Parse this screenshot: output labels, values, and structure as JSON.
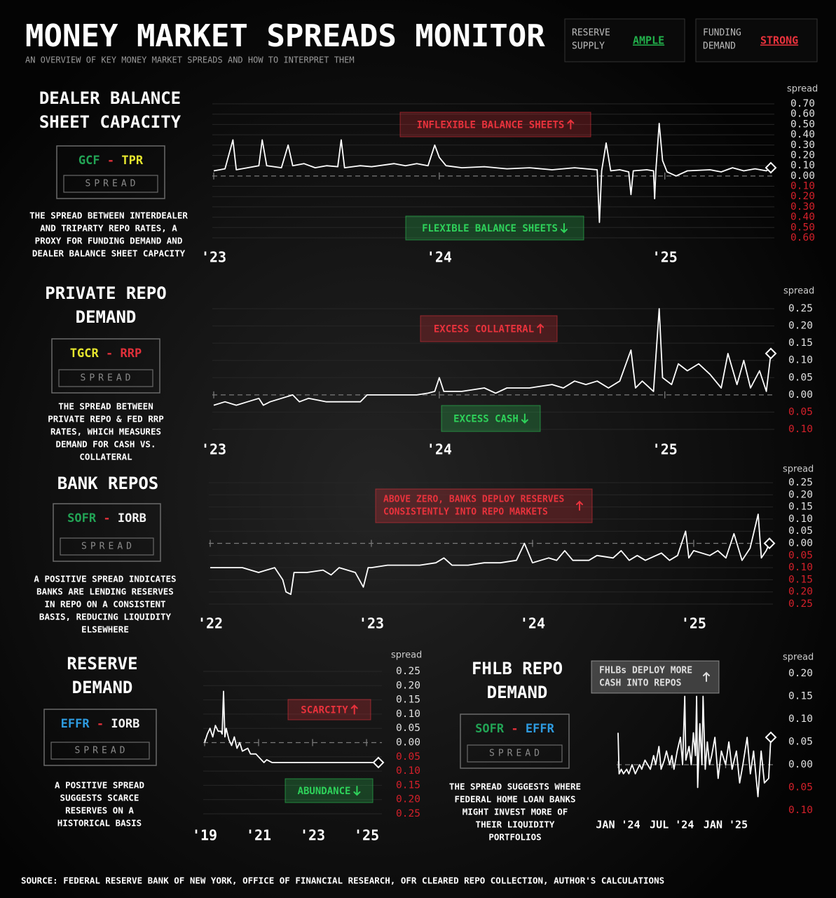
{
  "header": {
    "title": "MONEY MARKET SPREADS MONITOR",
    "subtitle": "AN OVERVIEW OF KEY MONEY MARKET SPREADS AND HOW TO INTERPRET THEM",
    "badges": [
      {
        "label": [
          "RESERVE",
          "SUPPLY"
        ],
        "value": "AMPLE",
        "color": "#22b04b"
      },
      {
        "label": [
          "FUNDING",
          "DEMAND"
        ],
        "value": "STRONG",
        "color": "#e8323c"
      }
    ]
  },
  "chart_data": [
    {
      "type": "line",
      "title": [
        "DEALER BALANCE",
        "SHEET CAPACITY"
      ],
      "formula": [
        {
          "text": "GCF",
          "color": "#22a455"
        },
        {
          "text": "-",
          "color": "#e0303a"
        },
        {
          "text": "TPR",
          "color": "#e6e62e"
        }
      ],
      "formula_label": "SPREAD",
      "description": [
        "THE SPREAD BETWEEN INTERDEALER",
        "AND TRIPARTY REPO RATES, A",
        "PROXY FOR FUNDING DEMAND AND",
        "DEALER BALANCE SHEET CAPACITY"
      ],
      "annotations": [
        {
          "lines": [
            "INFLEXIBLE BALANCE SHEETS"
          ],
          "arrow": "up",
          "color": "#e8323c"
        },
        {
          "lines": [
            "FLEXIBLE BALANCE SHEETS"
          ],
          "arrow": "down",
          "color": "#2ed15a"
        }
      ],
      "ylabel": "spread",
      "color": "#ffffff",
      "grid": true,
      "xlim": [
        2023,
        2025.47
      ],
      "xticks": [
        {
          "value": 2023,
          "label": "'23"
        },
        {
          "value": 2024,
          "label": "'24"
        },
        {
          "value": 2025,
          "label": "'25"
        }
      ],
      "ylim": [
        -0.6,
        0.7
      ],
      "yticks": [
        {
          "value": 0.7,
          "label": "0.70"
        },
        {
          "value": 0.6,
          "label": "0.60"
        },
        {
          "value": 0.5,
          "label": "0.50"
        },
        {
          "value": 0.4,
          "label": "0.40"
        },
        {
          "value": 0.3,
          "label": "0.30"
        },
        {
          "value": 0.2,
          "label": "0.20"
        },
        {
          "value": 0.1,
          "label": "0.10"
        },
        {
          "value": 0,
          "label": "0.00"
        },
        {
          "value": -0.1,
          "label": "0.10"
        },
        {
          "value": -0.2,
          "label": "0.20"
        },
        {
          "value": -0.3,
          "label": "0.30"
        },
        {
          "value": -0.4,
          "label": "0.40"
        },
        {
          "value": -0.5,
          "label": "0.50"
        },
        {
          "value": -0.6,
          "label": "0.60"
        }
      ],
      "x": [
        2023.0,
        2023.05,
        2023.085,
        2023.1,
        2023.15,
        2023.2,
        2023.215,
        2023.235,
        2023.3,
        2023.33,
        2023.35,
        2023.4,
        2023.45,
        2023.5,
        2023.55,
        2023.565,
        2023.58,
        2023.65,
        2023.7,
        2023.8,
        2023.85,
        2023.9,
        2023.95,
        2023.98,
        2024.0,
        2024.03,
        2024.1,
        2024.2,
        2024.3,
        2024.4,
        2024.5,
        2024.6,
        2024.7,
        2024.71,
        2024.72,
        2024.74,
        2024.76,
        2024.8,
        2024.84,
        2024.85,
        2024.86,
        2024.92,
        2024.95,
        2024.955,
        2024.96,
        2024.975,
        2024.99,
        2025.01,
        2025.05,
        2025.1,
        2025.2,
        2025.25,
        2025.3,
        2025.35,
        2025.4,
        2025.45,
        2025.47
      ],
      "values": [
        0.05,
        0.07,
        0.35,
        0.06,
        0.08,
        0.1,
        0.35,
        0.1,
        0.08,
        0.3,
        0.1,
        0.12,
        0.08,
        0.1,
        0.09,
        0.35,
        0.08,
        0.1,
        0.09,
        0.12,
        0.1,
        0.12,
        0.1,
        0.3,
        0.18,
        0.1,
        0.08,
        0.09,
        0.07,
        0.08,
        0.06,
        0.08,
        0.06,
        -0.45,
        0.05,
        0.32,
        0.05,
        0.06,
        0.04,
        -0.18,
        0.05,
        0.06,
        0.05,
        -0.22,
        0.05,
        0.51,
        0.15,
        0.04,
        0.0,
        0.05,
        0.06,
        0.04,
        0.08,
        0.05,
        0.07,
        0.05,
        0.08
      ]
    },
    {
      "type": "line",
      "title": [
        "PRIVATE REPO",
        "DEMAND"
      ],
      "formula": [
        {
          "text": "TGCR",
          "color": "#e6e62e"
        },
        {
          "text": "-",
          "color": "#e0303a"
        },
        {
          "text": "RRP",
          "color": "#e0303a"
        }
      ],
      "formula_label": "SPREAD",
      "description": [
        "THE SPREAD BETWEEN",
        "PRIVATE REPO & FED RRP",
        "RATES, WHICH MEASURES",
        "DEMAND FOR CASH VS.",
        "COLLATERAL"
      ],
      "annotations": [
        {
          "lines": [
            "EXCESS COLLATERAL"
          ],
          "arrow": "up",
          "color": "#e8323c"
        },
        {
          "lines": [
            "EXCESS CASH"
          ],
          "arrow": "down",
          "color": "#2ed15a"
        }
      ],
      "ylabel": "spread",
      "color": "#ffffff",
      "grid": true,
      "xlim": [
        2023,
        2025.47
      ],
      "xticks": [
        {
          "value": 2023,
          "label": "'23"
        },
        {
          "value": 2024,
          "label": "'24"
        },
        {
          "value": 2025,
          "label": "'25"
        }
      ],
      "ylim": [
        -0.1,
        0.25
      ],
      "yticks": [
        {
          "value": 0.25,
          "label": "0.25"
        },
        {
          "value": 0.2,
          "label": "0.20"
        },
        {
          "value": 0.15,
          "label": "0.15"
        },
        {
          "value": 0.1,
          "label": "0.10"
        },
        {
          "value": 0.05,
          "label": "0.05"
        },
        {
          "value": 0,
          "label": "0.00"
        },
        {
          "value": -0.05,
          "label": "0.05"
        },
        {
          "value": -0.1,
          "label": "0.10"
        }
      ],
      "x": [
        2023.0,
        2023.05,
        2023.1,
        2023.15,
        2023.2,
        2023.22,
        2023.25,
        2023.3,
        2023.35,
        2023.38,
        2023.42,
        2023.5,
        2023.55,
        2023.6,
        2023.65,
        2023.68,
        2023.75,
        2023.85,
        2023.9,
        2023.95,
        2023.98,
        2024.0,
        2024.02,
        2024.1,
        2024.2,
        2024.25,
        2024.3,
        2024.4,
        2024.5,
        2024.55,
        2024.6,
        2024.65,
        2024.7,
        2024.75,
        2024.8,
        2024.85,
        2024.87,
        2024.9,
        2024.95,
        2024.975,
        2024.99,
        2025.03,
        2025.06,
        2025.1,
        2025.15,
        2025.2,
        2025.25,
        2025.28,
        2025.32,
        2025.35,
        2025.38,
        2025.42,
        2025.45,
        2025.47
      ],
      "values": [
        -0.03,
        -0.02,
        -0.03,
        -0.02,
        -0.01,
        -0.03,
        -0.02,
        -0.01,
        0.0,
        -0.02,
        -0.01,
        -0.02,
        -0.02,
        -0.02,
        -0.02,
        0.0,
        0.0,
        0.0,
        0.0,
        0.005,
        0.01,
        0.05,
        0.01,
        0.01,
        0.02,
        0.005,
        0.02,
        0.02,
        0.03,
        0.02,
        0.04,
        0.03,
        0.04,
        0.02,
        0.04,
        0.13,
        0.02,
        0.04,
        0.01,
        0.25,
        0.05,
        0.03,
        0.09,
        0.07,
        0.09,
        0.06,
        0.02,
        0.12,
        0.03,
        0.1,
        0.02,
        0.07,
        0.01,
        0.12
      ]
    },
    {
      "type": "line",
      "title": [
        "BANK REPOS"
      ],
      "formula": [
        {
          "text": "SOFR",
          "color": "#22a455"
        },
        {
          "text": "-",
          "color": "#e0303a"
        },
        {
          "text": "IORB",
          "color": "#f0f0f0"
        }
      ],
      "formula_label": "SPREAD",
      "description": [
        "A POSITIVE SPREAD INDICATES",
        "BANKS ARE LENDING RESERVES",
        "IN REPO ON A CONSISTENT",
        "BASIS, REDUCING LIQUIDITY",
        "ELSEWHERE"
      ],
      "annotations": [
        {
          "lines": [
            "ABOVE ZERO, BANKS DEPLOY RESERVES",
            "CONSISTENTLY INTO REPO MARKETS"
          ],
          "arrow": "up",
          "color": "#e8323c"
        }
      ],
      "ylabel": "spread",
      "color": "#ffffff",
      "grid": true,
      "xlim": [
        2022,
        2025.47
      ],
      "xticks": [
        {
          "value": 2022,
          "label": "'22"
        },
        {
          "value": 2023,
          "label": "'23"
        },
        {
          "value": 2024,
          "label": "'24"
        },
        {
          "value": 2025,
          "label": "'25"
        }
      ],
      "ylim": [
        -0.25,
        0.25
      ],
      "yticks": [
        {
          "value": 0.25,
          "label": "0.25"
        },
        {
          "value": 0.2,
          "label": "0.20"
        },
        {
          "value": 0.15,
          "label": "0.15"
        },
        {
          "value": 0.1,
          "label": "0.10"
        },
        {
          "value": 0.05,
          "label": "0.05"
        },
        {
          "value": 0,
          "label": "0.00"
        },
        {
          "value": -0.05,
          "label": "0.05"
        },
        {
          "value": -0.1,
          "label": "0.10"
        },
        {
          "value": -0.15,
          "label": "0.15"
        },
        {
          "value": -0.2,
          "label": "0.20"
        },
        {
          "value": -0.25,
          "label": "0.25"
        }
      ],
      "x": [
        2022.0,
        2022.1,
        2022.2,
        2022.3,
        2022.4,
        2022.45,
        2022.47,
        2022.5,
        2022.52,
        2022.6,
        2022.7,
        2022.75,
        2022.8,
        2022.9,
        2022.95,
        2022.98,
        2023.0,
        2023.1,
        2023.2,
        2023.3,
        2023.4,
        2023.45,
        2023.5,
        2023.6,
        2023.7,
        2023.8,
        2023.9,
        2023.95,
        2024.0,
        2024.1,
        2024.15,
        2024.2,
        2024.25,
        2024.35,
        2024.4,
        2024.5,
        2024.55,
        2024.6,
        2024.65,
        2024.7,
        2024.8,
        2024.85,
        2024.9,
        2024.95,
        2024.97,
        2025.0,
        2025.1,
        2025.15,
        2025.2,
        2025.25,
        2025.3,
        2025.35,
        2025.4,
        2025.42,
        2025.45,
        2025.47
      ],
      "values": [
        -0.1,
        -0.1,
        -0.1,
        -0.12,
        -0.1,
        -0.15,
        -0.2,
        -0.21,
        -0.12,
        -0.12,
        -0.11,
        -0.13,
        -0.1,
        -0.12,
        -0.18,
        -0.1,
        -0.1,
        -0.09,
        -0.09,
        -0.09,
        -0.08,
        -0.06,
        -0.09,
        -0.09,
        -0.08,
        -0.08,
        -0.07,
        0.0,
        -0.08,
        -0.06,
        -0.07,
        -0.03,
        -0.07,
        -0.07,
        -0.05,
        -0.06,
        -0.03,
        -0.07,
        -0.05,
        -0.07,
        -0.04,
        -0.07,
        -0.05,
        0.05,
        -0.06,
        -0.03,
        -0.05,
        -0.03,
        -0.06,
        0.04,
        -0.07,
        -0.02,
        0.12,
        -0.06,
        -0.03,
        0.0
      ]
    },
    {
      "type": "line",
      "title": [
        "RESERVE",
        "DEMAND"
      ],
      "formula": [
        {
          "text": "EFFR",
          "color": "#2e9be0"
        },
        {
          "text": "-",
          "color": "#e0303a"
        },
        {
          "text": "IORB",
          "color": "#f0f0f0"
        }
      ],
      "formula_label": "SPREAD",
      "description": [
        "A POSITIVE SPREAD",
        "SUGGESTS SCARCE",
        "RESERVES ON A",
        "HISTORICAL BASIS"
      ],
      "annotations": [
        {
          "lines": [
            "SCARCITY"
          ],
          "arrow": "up",
          "color": "#e8323c"
        },
        {
          "lines": [
            "ABUNDANCE"
          ],
          "arrow": "down",
          "color": "#2ed15a"
        }
      ],
      "ylabel": "spread",
      "color": "#ffffff",
      "grid": true,
      "xlim": [
        2019,
        2025.44
      ],
      "xticks": [
        {
          "value": 2019,
          "label": "'19"
        },
        {
          "value": 2021,
          "label": "'21"
        },
        {
          "value": 2023,
          "label": "'23"
        },
        {
          "value": 2025,
          "label": "'25"
        }
      ],
      "ylim": [
        -0.25,
        0.25
      ],
      "yticks": [
        {
          "value": 0.25,
          "label": "0.25"
        },
        {
          "value": 0.2,
          "label": "0.20"
        },
        {
          "value": 0.15,
          "label": "0.15"
        },
        {
          "value": 0.1,
          "label": "0.10"
        },
        {
          "value": 0.05,
          "label": "0.05"
        },
        {
          "value": 0,
          "label": "0.00"
        },
        {
          "value": -0.05,
          "label": "0.05"
        },
        {
          "value": -0.1,
          "label": "0.10"
        },
        {
          "value": -0.15,
          "label": "0.15"
        },
        {
          "value": -0.2,
          "label": "0.20"
        },
        {
          "value": -0.25,
          "label": "0.25"
        }
      ],
      "x": [
        2019.0,
        2019.1,
        2019.2,
        2019.3,
        2019.4,
        2019.5,
        2019.6,
        2019.65,
        2019.7,
        2019.75,
        2019.8,
        2019.9,
        2020.0,
        2020.1,
        2020.2,
        2020.3,
        2020.4,
        2020.6,
        2020.7,
        2020.9,
        2021.0,
        2021.2,
        2021.3,
        2021.5,
        2021.6,
        2022.0,
        2022.5,
        2023.0,
        2023.5,
        2024.0,
        2024.5,
        2025.0,
        2025.44
      ],
      "values": [
        0.0,
        0.03,
        0.05,
        0.02,
        0.06,
        0.04,
        0.04,
        0.03,
        0.18,
        0.02,
        0.05,
        0.01,
        -0.01,
        0.02,
        -0.02,
        0.0,
        -0.03,
        -0.02,
        -0.04,
        -0.04,
        -0.05,
        -0.07,
        -0.06,
        -0.07,
        -0.07,
        -0.07,
        -0.07,
        -0.07,
        -0.07,
        -0.07,
        -0.07,
        -0.07,
        -0.07
      ]
    },
    {
      "type": "line",
      "title": [
        "FHLB REPO",
        "DEMAND"
      ],
      "formula": [
        {
          "text": "SOFR",
          "color": "#22a455"
        },
        {
          "text": "-",
          "color": "#e0303a"
        },
        {
          "text": "EFFR",
          "color": "#2e9be0"
        }
      ],
      "formula_label": "SPREAD",
      "description": [
        "THE SPREAD SUGGESTS WHERE",
        "FEDERAL HOME LOAN BANKS",
        "MIGHT INVEST MORE OF",
        "THEIR LIQUIDITY",
        "PORTFOLIOS"
      ],
      "annotations": [
        {
          "lines": [
            "FHLBs DEPLOY MORE",
            "CASH INTO REPOS"
          ],
          "arrow": "up",
          "color": "#dddddd"
        }
      ],
      "ylabel": "spread",
      "color": "#ffffff",
      "grid": false,
      "xlim": [
        2024,
        2025.42
      ],
      "xticks": [
        {
          "value": 2024,
          "label": "JAN '24"
        },
        {
          "value": 2024.5,
          "label": "JUL '24"
        },
        {
          "value": 2025,
          "label": "JAN '25"
        }
      ],
      "ylim": [
        -0.1,
        0.2
      ],
      "yticks": [
        {
          "value": 0.2,
          "label": "0.20"
        },
        {
          "value": 0.15,
          "label": "0.15"
        },
        {
          "value": 0.1,
          "label": "0.10"
        },
        {
          "value": 0.05,
          "label": "0.05"
        },
        {
          "value": 0,
          "label": "0.00"
        },
        {
          "value": -0.05,
          "label": "0.05"
        },
        {
          "value": -0.1,
          "label": "0.10"
        }
      ],
      "x": [
        2024.0,
        2024.01,
        2024.03,
        2024.05,
        2024.08,
        2024.1,
        2024.13,
        2024.16,
        2024.2,
        2024.22,
        2024.25,
        2024.3,
        2024.33,
        2024.35,
        2024.38,
        2024.4,
        2024.43,
        2024.45,
        2024.48,
        2024.5,
        2024.52,
        2024.55,
        2024.58,
        2024.6,
        2024.62,
        2024.63,
        2024.66,
        2024.68,
        2024.7,
        2024.72,
        2024.73,
        2024.74,
        2024.76,
        2024.78,
        2024.79,
        2024.81,
        2024.83,
        2024.85,
        2024.87,
        2024.9,
        2024.93,
        2024.96,
        2025.0,
        2025.03,
        2025.06,
        2025.1,
        2025.13,
        2025.16,
        2025.2,
        2025.23,
        2025.26,
        2025.3,
        2025.33,
        2025.36,
        2025.4,
        2025.42
      ],
      "values": [
        0.07,
        -0.02,
        -0.01,
        -0.02,
        -0.01,
        -0.02,
        0.0,
        -0.02,
        0.0,
        -0.01,
        0.01,
        -0.01,
        0.02,
        0.0,
        0.04,
        -0.01,
        0.01,
        0.03,
        0.0,
        0.02,
        -0.01,
        0.03,
        0.06,
        0.0,
        0.15,
        0.01,
        0.04,
        0.0,
        0.07,
        0.02,
        0.15,
        -0.05,
        0.09,
        0.0,
        0.15,
        -0.01,
        0.05,
        0.0,
        0.02,
        0.06,
        -0.03,
        0.03,
        0.0,
        0.05,
        -0.01,
        0.03,
        -0.04,
        0.0,
        0.06,
        -0.02,
        0.03,
        -0.07,
        0.03,
        -0.04,
        -0.03,
        0.06
      ]
    }
  ],
  "source": "SOURCE: FEDERAL RESERVE BANK OF NEW YORK, OFFICE OF FINANCIAL RESEARCH, OFR CLEARED REPO COLLECTION, AUTHOR'S CALCULATIONS"
}
